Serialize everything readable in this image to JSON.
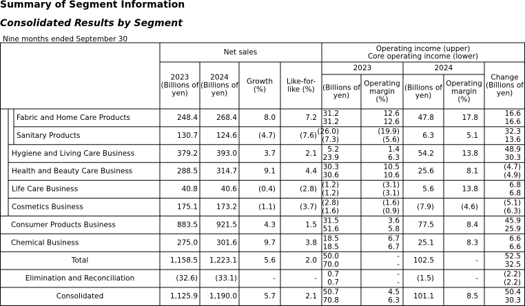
{
  "header": {
    "title": "Summary of Segment Information",
    "subtitle": "Consolidated Results by Segment",
    "period": "Nine months ended September 30"
  },
  "table": {
    "net_sales_header": "Net sales",
    "operating_header": [
      "Operating income (upper)",
      "Core operating income (lower)"
    ],
    "operating_years": [
      "2023",
      "2024"
    ],
    "columns": [
      [
        "2023",
        "(Billions of",
        "yen)"
      ],
      [
        "2024",
        "(Billions of",
        "yen)"
      ],
      [
        "Growth",
        "(%)"
      ],
      [
        "Like-for-",
        "like (%)"
      ],
      [
        "(Billions of",
        "yen)"
      ],
      [
        "Operating",
        "margin",
        "(%)"
      ],
      [
        "(Billions of",
        "yen)"
      ],
      [
        "Operating",
        "margin",
        "(%)"
      ],
      [
        "Change",
        "(Billions of",
        "yen)"
      ]
    ],
    "rows": [
      {
        "label": "Fabric and Home Care Products",
        "cells": [
          "248.4",
          "268.4",
          "8.0",
          "7.2",
          [
            "31.2",
            "31.2"
          ],
          [
            "12.6",
            "12.6"
          ],
          "47.8",
          "17.8",
          [
            "16.6",
            "16.6"
          ]
        ]
      },
      {
        "label": "Sanitary Products",
        "cells": [
          "130.7",
          "124.6",
          "(4.7)",
          "(7.6)",
          [
            "(26.0)",
            "(7.3)"
          ],
          [
            "(19.9)",
            "(5.6)"
          ],
          "6.3",
          "5.1",
          [
            "32.3",
            "13.6"
          ]
        ]
      },
      {
        "label": "Hygiene and Living Care Business",
        "cells": [
          "379.2",
          "393.0",
          "3.7",
          "2.1",
          [
            "5.2",
            "23.9"
          ],
          [
            "1.4",
            "6.3"
          ],
          "54.2",
          "13.8",
          [
            "48.9",
            "30.3"
          ]
        ]
      },
      {
        "label": "Health and Beauty Care Business",
        "cells": [
          "288.5",
          "314.7",
          "9.1",
          "4.4",
          [
            "30.3",
            "30.6"
          ],
          [
            "10.5",
            "10.6"
          ],
          "25.6",
          "8.1",
          [
            "(4.7)",
            "(4.9)"
          ]
        ]
      },
      {
        "label": "Life Care Business",
        "cells": [
          "40.8",
          "40.6",
          "(0.4)",
          "(2.8)",
          [
            "(1.2)",
            "(1.2)"
          ],
          [
            "(3.1)",
            "(3.1)"
          ],
          "5.6",
          "13.8",
          [
            "6.8",
            "6.8"
          ]
        ]
      },
      {
        "label": "Cosmetics Business",
        "cells": [
          "175.1",
          "173.2",
          "(1.1)",
          "(3.7)",
          [
            "(2.8)",
            "(1.6)"
          ],
          [
            "(1.6)",
            "(0.9)"
          ],
          "(7.9)",
          "(4.6)",
          [
            "(5.1)",
            "(6.3)"
          ]
        ]
      },
      {
        "label": "Consumer Products Business",
        "cells": [
          "883.5",
          "921.5",
          "4.3",
          "1.5",
          [
            "31.5",
            "51.6"
          ],
          [
            "3.6",
            "5.8"
          ],
          "77.5",
          "8.4",
          [
            "45.9",
            "25.9"
          ]
        ]
      },
      {
        "label": "Chemical Business",
        "cells": [
          "275.0",
          "301.6",
          "9.7",
          "3.8",
          [
            "18.5",
            "18.5"
          ],
          [
            "6.7",
            "6.7"
          ],
          "25.1",
          "8.3",
          [
            "6.6",
            "6.6"
          ]
        ]
      },
      {
        "label": "Total",
        "cells": [
          "1,158.5",
          "1,223.1",
          "5.6",
          "2.0",
          [
            "50.0",
            "70.0"
          ],
          [
            "-",
            "-"
          ],
          "102.5",
          "-",
          [
            "52.5",
            "32.5"
          ]
        ]
      },
      {
        "label": "Elimination and Reconciliation",
        "cells": [
          "(32.6)",
          "(33.1)",
          "-",
          "-",
          [
            "0.7",
            "0.7"
          ],
          [
            "-",
            "-"
          ],
          "(1.5)",
          "-",
          [
            "(2.2)",
            "(2.2)"
          ]
        ]
      },
      {
        "label": "Consolidated",
        "cells": [
          "1,125.9",
          "1,190.0",
          "5.7",
          "2.1",
          [
            "50.7",
            "70.8"
          ],
          [
            "4.5",
            "6.3"
          ],
          "101.1",
          "8.5",
          [
            "50.4",
            "30.3"
          ]
        ]
      }
    ]
  }
}
